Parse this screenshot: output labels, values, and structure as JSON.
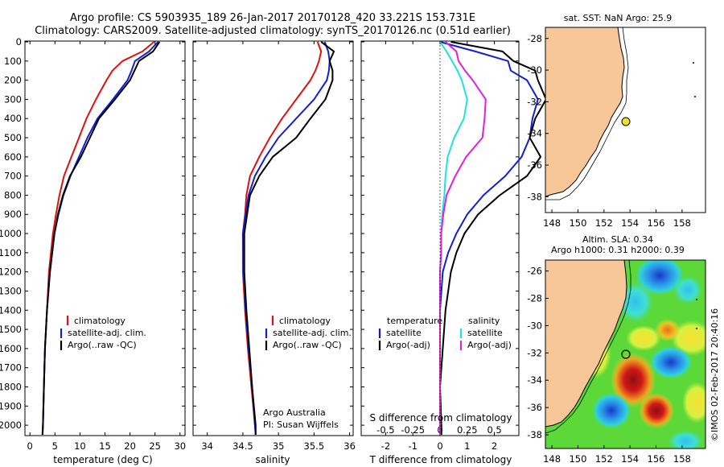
{
  "header": {
    "line1": "Argo profile: CS 5903935_189 26-Jan-2017 20170128_420 33.221S 153.731E",
    "line2": "Climatology: CARS2009. Satellite-adjusted climatology: synTS_20170126.nc (0.51d earlier)"
  },
  "colors": {
    "climatology": "#e01010",
    "satellite": "#1020d0",
    "argo": "#000000",
    "sat_salinity": "#20e0e0",
    "argo_salinity": "#e020e0",
    "land": "#f7c79a"
  },
  "depth_axis": {
    "ticks": [
      "0",
      "100",
      "200",
      "300",
      "400",
      "500",
      "600",
      "700",
      "800",
      "900",
      "1000",
      "1100",
      "1200",
      "1300",
      "1400",
      "1500",
      "1600",
      "1700",
      "1800",
      "1900",
      "2000"
    ]
  },
  "temperature_panel": {
    "xlabel": "temperature (deg C)",
    "xticks": [
      "0",
      "5",
      "10",
      "15",
      "20",
      "25",
      "30"
    ],
    "xlim": [
      -1,
      31
    ],
    "legend": [
      "climatology",
      "satellite-adj. clim.",
      "Argo(..raw -QC)"
    ]
  },
  "salinity_panel": {
    "xlabel": "salinity",
    "xticks": [
      "34",
      "34.5",
      "35",
      "35.5",
      "36"
    ],
    "xlim": [
      33.8,
      36.05
    ],
    "legend": [
      "climatology",
      "satellite-adj. clim.",
      "Argo(..raw -QC)"
    ],
    "credit1": "Argo Australia",
    "credit2": "PI: Susan Wijffels"
  },
  "difference_panel": {
    "xlabel": "T difference from climatology",
    "top_label": "S difference from climatology",
    "top_ticks": [
      "-0.5",
      "-0.25",
      "0",
      "0.25",
      "0.5"
    ],
    "xticks": [
      "-2",
      "-1",
      "0",
      "1",
      "2"
    ],
    "xlim": [
      -2.9,
      2.9
    ],
    "legend_t_title": "temperature",
    "legend_s_title": "salinity",
    "legend_t": [
      "satellite",
      "Argo(-adj)"
    ],
    "legend_s": [
      "satellite",
      "Argo(-adj)"
    ]
  },
  "map_top": {
    "title": "sat. SST: NaN Argo: 25.9",
    "yticks": [
      "-28",
      "-30",
      "-32",
      "-34",
      "-36",
      "-38"
    ],
    "xticks": [
      "148",
      "150",
      "152",
      "154",
      "156",
      "158"
    ]
  },
  "map_bottom": {
    "title1": "Altim. SLA: 0.34",
    "title2": "Argo h1000: 0.31 h2000: 0.39",
    "yticks": [
      "-26",
      "-28",
      "-30",
      "-32",
      "-34",
      "-36",
      "-38"
    ],
    "xticks": [
      "148",
      "150",
      "152",
      "154",
      "156",
      "158"
    ]
  },
  "side_stamp": "©IMOS 02-Feb-2017 20:40:16",
  "chart_data": [
    {
      "type": "line",
      "name": "temperature",
      "depth": [
        0,
        50,
        100,
        150,
        200,
        300,
        400,
        500,
        600,
        700,
        800,
        900,
        1000,
        1200,
        1400,
        1600,
        1800,
        2000,
        2050
      ],
      "series": [
        {
          "name": "climatology",
          "values": [
            24.8,
            22.5,
            18.5,
            16.5,
            15.3,
            13.2,
            11.3,
            9.8,
            8.3,
            6.8,
            5.9,
            5.2,
            4.6,
            3.8,
            3.4,
            3.0,
            2.8,
            2.6,
            2.5
          ]
        },
        {
          "name": "satellite-adj. clim.",
          "values": [
            25.6,
            23.8,
            21.0,
            20.3,
            19.5,
            16.6,
            13.5,
            11.5,
            9.8,
            8.1,
            6.7,
            5.7,
            4.9,
            4.0,
            3.4,
            3.0,
            2.8,
            2.6,
            2.5
          ]
        },
        {
          "name": "Argo(..raw -QC)",
          "values": [
            25.9,
            24.6,
            21.8,
            20.9,
            20.0,
            17.0,
            13.8,
            12.0,
            10.2,
            8.0,
            6.6,
            5.6,
            4.9,
            4.0,
            3.4,
            3.0,
            2.8,
            2.6,
            2.5
          ]
        }
      ]
    },
    {
      "type": "line",
      "name": "salinity",
      "depth": [
        0,
        50,
        100,
        150,
        200,
        300,
        400,
        500,
        600,
        700,
        800,
        900,
        1000,
        1200,
        1400,
        1600,
        1800,
        2000,
        2050
      ],
      "series": [
        {
          "name": "climatology",
          "values": [
            35.55,
            35.6,
            35.57,
            35.52,
            35.45,
            35.25,
            35.05,
            34.88,
            34.73,
            34.6,
            34.55,
            34.53,
            34.5,
            34.5,
            34.53,
            34.57,
            34.62,
            34.67,
            34.68
          ]
        },
        {
          "name": "satellite-adj. clim.",
          "values": [
            35.65,
            35.7,
            35.72,
            35.71,
            35.68,
            35.5,
            35.25,
            35.0,
            34.82,
            34.67,
            34.58,
            34.54,
            34.5,
            34.51,
            34.54,
            34.58,
            34.63,
            34.67,
            34.68
          ]
        },
        {
          "name": "Argo(..raw -QC)",
          "values": [
            35.6,
            35.78,
            35.72,
            35.76,
            35.76,
            35.66,
            35.45,
            35.25,
            34.92,
            34.73,
            34.6,
            34.56,
            34.52,
            34.52,
            34.55,
            34.59,
            34.63,
            34.68,
            34.68
          ]
        }
      ]
    },
    {
      "type": "line",
      "name": "difference",
      "depth": [
        0,
        50,
        100,
        150,
        200,
        300,
        400,
        500,
        600,
        700,
        800,
        900,
        1000,
        1100,
        1200,
        1400,
        1600,
        1800,
        2000,
        2050
      ],
      "series": [
        {
          "name": "T satellite",
          "values": [
            0.0,
            1.3,
            2.5,
            2.6,
            3.2,
            3.6,
            3.4,
            3.3,
            3.0,
            2.4,
            1.6,
            1.0,
            0.6,
            0.3,
            0.1,
            0.0,
            0.0,
            0.0,
            0.0,
            0.0
          ]
        },
        {
          "name": "T Argo(-adj)",
          "values": [
            0.4,
            2.3,
            2.7,
            3.5,
            3.6,
            3.9,
            3.5,
            3.3,
            3.7,
            3.2,
            2.2,
            1.4,
            0.9,
            0.6,
            0.4,
            0.2,
            0.1,
            0.0,
            0.05,
            0.05
          ]
        },
        {
          "name": "S satellite",
          "values": [
            0.0,
            0.06,
            0.11,
            0.16,
            0.2,
            0.25,
            0.22,
            0.13,
            0.07,
            0.05,
            0.04,
            0.02,
            0.01,
            0.01,
            0.0,
            0.0,
            0.0,
            0.0,
            0.0,
            0.0
          ]
        },
        {
          "name": "S Argo(-adj)",
          "values": [
            0.05,
            0.15,
            0.17,
            0.23,
            0.3,
            0.42,
            0.41,
            0.39,
            0.24,
            0.14,
            0.06,
            0.03,
            0.01,
            0.01,
            0.0,
            0.0,
            0.0,
            0.0,
            0.0,
            0.0
          ]
        }
      ]
    }
  ]
}
